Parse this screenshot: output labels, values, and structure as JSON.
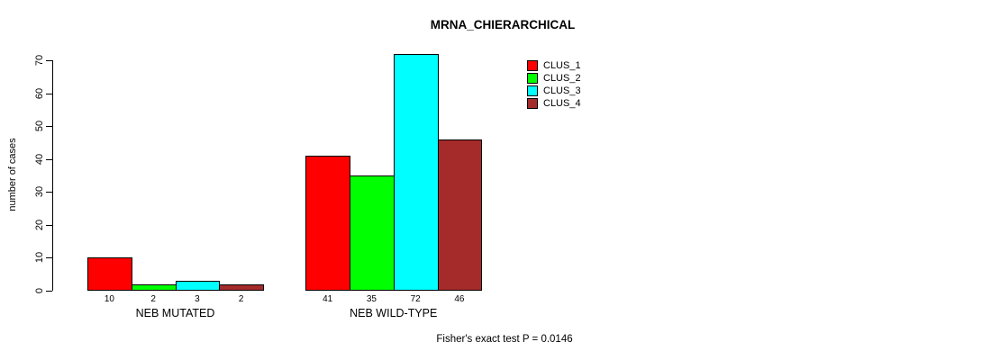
{
  "chart_data": {
    "type": "bar",
    "title": "MRNA_CHIERARCHICAL",
    "ylabel": "number of cases",
    "xlabel": "",
    "categories": [
      "NEB MUTATED",
      "NEB WILD-TYPE"
    ],
    "series": [
      {
        "name": "CLUS_1",
        "color": "#ff0000",
        "values": [
          10,
          41
        ]
      },
      {
        "name": "CLUS_2",
        "color": "#00ff00",
        "values": [
          2,
          35
        ]
      },
      {
        "name": "CLUS_3",
        "color": "#00ffff",
        "values": [
          3,
          72
        ]
      },
      {
        "name": "CLUS_4",
        "color": "#a52a2a",
        "values": [
          2,
          46
        ]
      }
    ],
    "bar_value_labels": [
      [
        10,
        2,
        3,
        2
      ],
      [
        41,
        35,
        72,
        46
      ]
    ],
    "ylim": [
      0,
      70
    ],
    "yticks": [
      0,
      10,
      20,
      30,
      40,
      50,
      60,
      70
    ],
    "grid": false,
    "legend_position": "top-right",
    "annotation": "Fisher's exact test P = 0.0146"
  }
}
